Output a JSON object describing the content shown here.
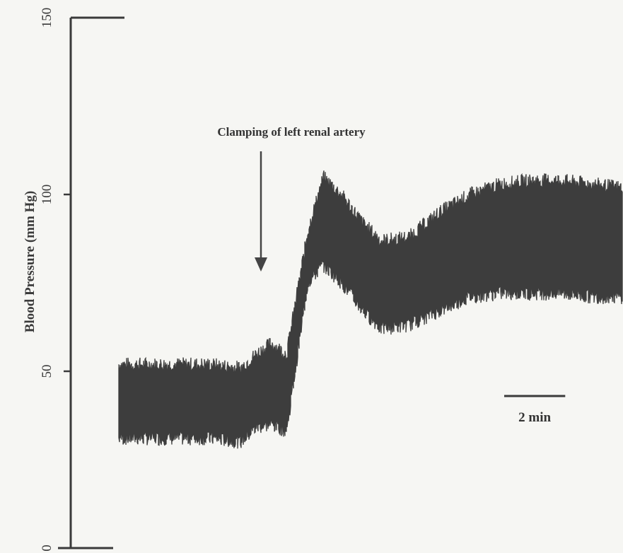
{
  "chart_data": {
    "type": "line",
    "title": "",
    "ylabel": "Blood Pressure (mm Hg)",
    "xlabel": "",
    "ylim": [
      0,
      150
    ],
    "yticks": [
      "0",
      "50",
      "100",
      "150"
    ],
    "grid": false,
    "x_unit": "min",
    "xlim": [
      0,
      16.5
    ],
    "annotation": {
      "text": "Clamping of left renal artery",
      "x": 4.6
    },
    "scale_bar": {
      "label": "2 min",
      "length": 2
    },
    "series": [
      {
        "x": [
          0,
          1,
          2,
          3,
          4,
          4.5,
          5,
          5.5,
          6.2,
          6.7,
          7.3,
          8,
          8.6,
          9.5,
          10.5,
          11.5,
          12.5,
          13.5,
          14.5,
          15.5,
          16.5
        ],
        "systolic": [
          52,
          52,
          52,
          52,
          51,
          55,
          58,
          55,
          90,
          105,
          100,
          92,
          87,
          88,
          95,
          100,
          103,
          104,
          104,
          103,
          102
        ],
        "diastolic": [
          31,
          31,
          31,
          31,
          30,
          34,
          35,
          33,
          75,
          80,
          75,
          67,
          62,
          63,
          67,
          71,
          72,
          72,
          72,
          71,
          71
        ]
      }
    ]
  }
}
